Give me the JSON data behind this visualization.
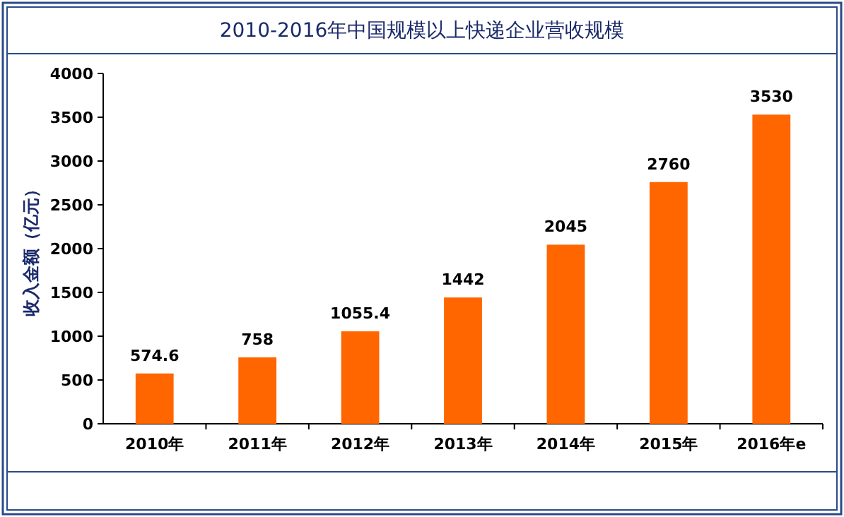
{
  "chart_data": {
    "type": "bar",
    "title": "2010-2016年中国规模以上快递企业营收规模",
    "ylabel": "收入金额（亿元）",
    "categories": [
      "2010年",
      "2011年",
      "2012年",
      "2013年",
      "2014年",
      "2015年",
      "2016年e"
    ],
    "values": [
      574.6,
      758,
      1055.4,
      1442,
      2045,
      2760,
      3530
    ],
    "color": "#ff6600",
    "ylim": [
      0,
      4000
    ],
    "yticks": [
      0,
      500,
      1000,
      1500,
      2000,
      2500,
      3000,
      3500,
      4000
    ],
    "data_labels": true
  }
}
